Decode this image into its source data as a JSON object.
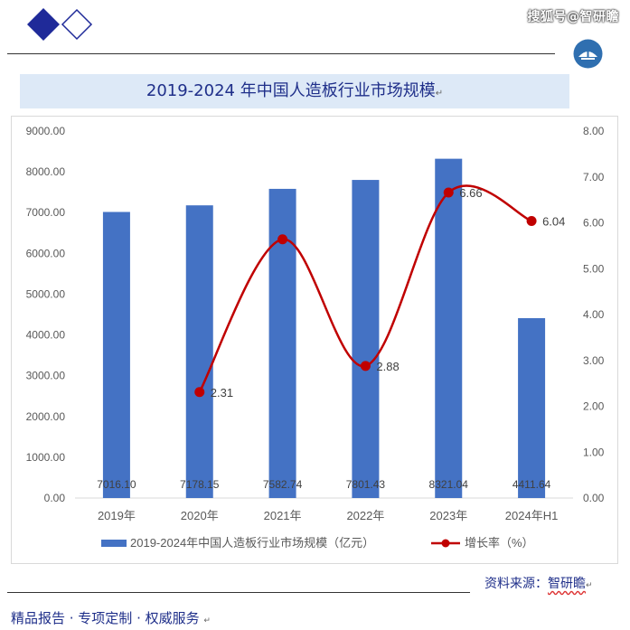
{
  "header": {
    "watermark": "搜狐号@智研瞻"
  },
  "colors": {
    "bar": "#4472c4",
    "line": "#c00000",
    "title_band": "#dde9f7",
    "title_text": "#1f2f8a",
    "logo": "#1f2a99"
  },
  "chart_data": {
    "type": "bar",
    "title": "2019-2024 年中国人造板行业市场规模",
    "categories": [
      "2019年",
      "2020年",
      "2021年",
      "2022年",
      "2023年",
      "2024年H1"
    ],
    "series": [
      {
        "name": "2019-2024年中国人造板行业市场规模（亿元）",
        "type": "bar",
        "axis": "left",
        "values": [
          7016.1,
          7178.15,
          7582.74,
          7801.43,
          8321.04,
          4411.64
        ],
        "labels": [
          "7016.10",
          "7178.15",
          "7582.74",
          "7801.43",
          "8321.04",
          "4411.64"
        ]
      },
      {
        "name": "增长率（%）",
        "type": "line",
        "smooth": true,
        "axis": "right",
        "values": [
          null,
          2.31,
          5.64,
          2.88,
          6.66,
          6.04
        ],
        "labels": [
          "",
          "2.31",
          "",
          "2.88",
          "6.66",
          "6.04"
        ]
      }
    ],
    "y_left": {
      "min": 0,
      "max": 9000,
      "step": 1000,
      "ticks": [
        "0.00",
        "1000.00",
        "2000.00",
        "3000.00",
        "4000.00",
        "5000.00",
        "6000.00",
        "7000.00",
        "8000.00",
        "9000.00"
      ]
    },
    "y_right": {
      "min": 0,
      "max": 8,
      "step": 1,
      "ticks": [
        "0.00",
        "1.00",
        "2.00",
        "3.00",
        "4.00",
        "5.00",
        "6.00",
        "7.00",
        "8.00"
      ]
    },
    "grid": false,
    "legend_position": "bottom"
  },
  "footer": {
    "source_label": "资料来源：",
    "source_brand": "智研瞻",
    "tagline": "精品报告 · 专项定制 · 权威服务"
  }
}
